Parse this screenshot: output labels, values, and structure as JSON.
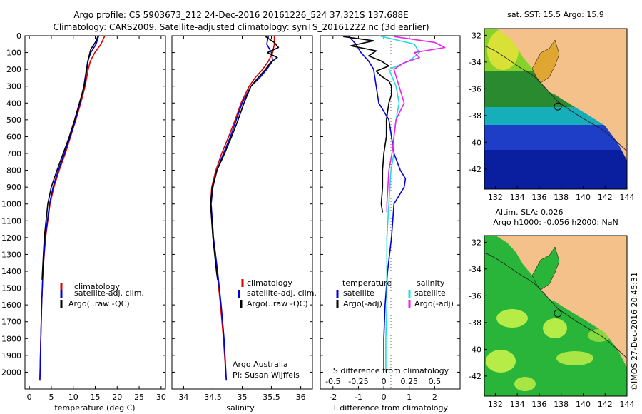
{
  "header": {
    "line1": "Argo profile: CS 5903673_212 24-Dec-2016 20161226_524 37.321S 137.688E",
    "line2": "Climatology: CARS2009. Satellite-adjusted climatology: synTS_20161222.nc (3d earlier)"
  },
  "colors": {
    "climatology": "#dd0000",
    "satellite": "#0000dd",
    "argo": "#000000",
    "argo_s": "#ee22ee",
    "sat_s": "#22dddd",
    "land": "#f5c18a"
  },
  "chart_data": [
    {
      "type": "line",
      "id": "temperature",
      "xlabel": "temperature (deg C)",
      "xlim": [
        -1,
        31
      ],
      "ylim": [
        2100,
        0
      ],
      "xticks": [
        0,
        5,
        10,
        15,
        20,
        25,
        30
      ],
      "yticks": [
        0,
        100,
        200,
        300,
        400,
        500,
        600,
        700,
        800,
        900,
        1000,
        1100,
        1200,
        1300,
        1400,
        1500,
        1600,
        1700,
        1800,
        1900,
        2000
      ],
      "legend": {
        "entries": [
          "climatology",
          "satellite-adj. clim.",
          "Argo(..raw -QC)"
        ],
        "placement": "lower-center"
      },
      "series": [
        {
          "name": "climatology",
          "color": "#dd0000",
          "depth": [
            0,
            50,
            100,
            150,
            200,
            300,
            400,
            500,
            600,
            700,
            800,
            900,
            1000,
            1200,
            1400,
            1600,
            1800,
            2050
          ],
          "values": [
            17.2,
            16.3,
            14.9,
            13.9,
            13.4,
            12.7,
            11.7,
            10.6,
            9.4,
            8.2,
            6.8,
            5.6,
            4.7,
            3.7,
            3.1,
            2.8,
            2.6,
            2.4
          ]
        },
        {
          "name": "satellite-adj. clim.",
          "color": "#0000dd",
          "depth": [
            0,
            50,
            100,
            150,
            200,
            300,
            400,
            500,
            600,
            700,
            800,
            900,
            1000,
            1200,
            1400,
            1600,
            1800,
            2050
          ],
          "values": [
            15.8,
            15.2,
            14.0,
            13.3,
            13.0,
            12.4,
            11.5,
            10.5,
            9.3,
            8.0,
            6.6,
            5.4,
            4.6,
            3.6,
            3.1,
            2.8,
            2.6,
            2.4
          ]
        },
        {
          "name": "Argo(..raw -QC)",
          "color": "#000000",
          "depth": [
            5,
            40,
            80,
            120,
            160,
            200,
            300,
            400,
            500,
            600,
            700,
            800,
            900,
            1000,
            1200,
            1400,
            1450
          ],
          "values": [
            15.6,
            15.0,
            14.0,
            13.6,
            13.3,
            13.1,
            12.5,
            11.4,
            10.3,
            9.1,
            7.7,
            6.3,
            5.0,
            4.2,
            3.4,
            3.0,
            2.9
          ]
        }
      ]
    },
    {
      "type": "line",
      "id": "salinity",
      "xlabel": "salinity",
      "xlim": [
        33.8,
        36.2
      ],
      "ylim": [
        2100,
        0
      ],
      "xticks": [
        34,
        34.5,
        35,
        35.5,
        36
      ],
      "legend": {
        "entries": [
          "climatology",
          "satellite-adj. clim.",
          "Argo(..raw -QC)"
        ],
        "placement": "lower-center"
      },
      "series": [
        {
          "name": "climatology",
          "color": "#dd0000",
          "depth": [
            0,
            50,
            100,
            150,
            200,
            250,
            300,
            400,
            500,
            600,
            700,
            800,
            900,
            1000,
            1200,
            1400,
            1600,
            1800,
            2050
          ],
          "values": [
            35.55,
            35.55,
            35.52,
            35.45,
            35.35,
            35.22,
            35.12,
            34.98,
            34.88,
            34.77,
            34.65,
            34.55,
            34.48,
            34.46,
            34.5,
            34.57,
            34.63,
            34.68,
            34.73
          ]
        },
        {
          "name": "satellite-adj. clim.",
          "color": "#0000dd",
          "depth": [
            0,
            50,
            100,
            150,
            200,
            250,
            300,
            400,
            500,
            600,
            700,
            800,
            900,
            1000,
            1200,
            1400,
            1600,
            1800,
            2050
          ],
          "values": [
            35.45,
            35.42,
            35.5,
            35.52,
            35.42,
            35.3,
            35.15,
            35.0,
            34.9,
            34.8,
            34.68,
            34.57,
            34.5,
            34.47,
            34.51,
            34.58,
            34.64,
            34.69,
            34.73
          ]
        },
        {
          "name": "Argo(..raw -QC)",
          "color": "#000000",
          "depth": [
            5,
            40,
            70,
            100,
            130,
            160,
            200,
            250,
            300,
            400,
            500,
            600,
            700,
            800,
            900,
            1000,
            1200,
            1400,
            1450
          ],
          "values": [
            35.4,
            35.55,
            35.62,
            35.43,
            35.6,
            35.48,
            35.4,
            35.27,
            35.15,
            35.03,
            34.93,
            34.82,
            34.7,
            34.57,
            34.49,
            34.46,
            34.5,
            34.56,
            34.58
          ]
        }
      ]
    },
    {
      "type": "line",
      "id": "differences",
      "xlabel": "T difference from climatology",
      "x2label": "S difference from climatology",
      "xlim": [
        -2.5,
        3.0
      ],
      "ylim": [
        2100,
        0
      ],
      "xticks": [
        -2,
        -1,
        0,
        1,
        2
      ],
      "x2ticks": [
        -0.5,
        -0.25,
        0,
        0.25,
        0.5
      ],
      "legend": {
        "temperature_header": "temperature",
        "salinity_header": "salinity",
        "entries": [
          "satellite",
          "Argo(-adj)",
          "satellite",
          "Argo(-adj)"
        ],
        "placement": "lower-center"
      },
      "series": [
        {
          "name": "T satellite",
          "color": "#0000dd",
          "depth": [
            0,
            50,
            100,
            150,
            200,
            300,
            400,
            500,
            600,
            700,
            800,
            850,
            900,
            950,
            1000,
            1100,
            1200,
            1400,
            1600,
            1800,
            2000
          ],
          "values": [
            -1.4,
            -1.1,
            -0.9,
            -0.6,
            -0.4,
            -0.3,
            -0.2,
            0.2,
            0.3,
            0.4,
            0.65,
            0.85,
            0.8,
            0.6,
            0.4,
            0.35,
            0.3,
            0.15,
            0.05,
            0.0,
            0.0
          ]
        },
        {
          "name": "T Argo(-adj)",
          "color": "#000000",
          "depth": [
            5,
            30,
            60,
            90,
            120,
            150,
            180,
            210,
            240,
            270,
            300,
            350,
            400,
            500,
            600,
            700,
            800,
            900,
            1000,
            1050
          ],
          "values": [
            -1.6,
            -0.4,
            -1.3,
            -0.3,
            -0.6,
            -0.1,
            0.2,
            -0.3,
            -0.1,
            0.2,
            0.3,
            0.3,
            0.2,
            0.1,
            0.1,
            0.0,
            -0.05,
            -0.05,
            -0.1,
            -0.05
          ]
        },
        {
          "name": "S satellite",
          "color": "#22dddd",
          "depth": [
            0,
            50,
            100,
            150,
            200,
            300,
            400,
            500,
            600,
            700,
            800,
            900,
            1000,
            1200,
            1400,
            1600,
            1800,
            2000
          ],
          "values": [
            -0.05,
            0.3,
            0.35,
            0.25,
            0.05,
            0.12,
            0.15,
            0.12,
            0.1,
            0.1,
            0.07,
            0.06,
            0.05,
            0.03,
            0.03,
            0.03,
            0.02,
            0.02
          ]
        },
        {
          "name": "S Argo(-adj)",
          "color": "#ee22ee",
          "depth": [
            5,
            40,
            70,
            100,
            130,
            160,
            200,
            300,
            400,
            500,
            600,
            700,
            800,
            900,
            1000,
            1050
          ],
          "values": [
            0.1,
            0.5,
            0.6,
            0.3,
            0.35,
            0.2,
            0.1,
            0.15,
            0.2,
            0.12,
            0.1,
            0.08,
            0.05,
            0.04,
            0.03,
            0.03
          ]
        }
      ]
    }
  ],
  "maps": {
    "sst": {
      "title": "sat. SST: 15.5 Argo: 15.9"
    },
    "sla": {
      "title1": "Altim. SLA: 0.026",
      "title2": "Argo h1000: -0.056 h2000: NaN"
    },
    "lon_ticks": [
      132,
      134,
      136,
      138,
      140,
      142,
      144
    ],
    "lat_ticks": [
      -32,
      -34,
      -36,
      -38,
      -40,
      -42
    ],
    "lon_range": [
      131,
      144
    ],
    "lat_range": [
      -31.5,
      -43.5
    ],
    "argo_position": {
      "lon": 137.688,
      "lat": -37.321
    }
  },
  "credits": {
    "argo_australia": "Argo Australia",
    "pi": "PI: Susan Wijffels",
    "stamp": "©IMOS 27-Dec-2016 20:45:31"
  }
}
